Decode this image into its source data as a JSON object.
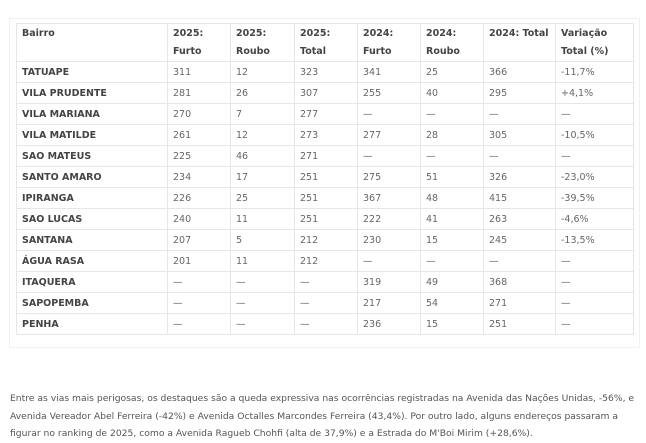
{
  "table": {
    "headers": [
      "Bairro",
      "2025: Furto",
      "2025: Roubo",
      "2025: Total",
      "2024: Furto",
      "2024: Roubo",
      "2024: Total",
      "Variação Total (%)"
    ],
    "rows": [
      [
        "TATUAPE",
        "311",
        "12",
        "323",
        "341",
        "25",
        "366",
        "-11,7%"
      ],
      [
        "VILA PRUDENTE",
        "281",
        "26",
        "307",
        "255",
        "40",
        "295",
        "+4,1%"
      ],
      [
        "VILA MARIANA",
        "270",
        "7",
        "277",
        "—",
        "—",
        "—",
        "—"
      ],
      [
        "VILA MATILDE",
        "261",
        "12",
        "273",
        "277",
        "28",
        "305",
        "-10,5%"
      ],
      [
        "SAO MATEUS",
        "225",
        "46",
        "271",
        "—",
        "—",
        "—",
        "—"
      ],
      [
        "SANTO AMARO",
        "234",
        "17",
        "251",
        "275",
        "51",
        "326",
        "-23,0%"
      ],
      [
        "IPIRANGA",
        "226",
        "25",
        "251",
        "367",
        "48",
        "415",
        "-39,5%"
      ],
      [
        "SAO LUCAS",
        "240",
        "11",
        "251",
        "222",
        "41",
        "263",
        "-4,6%"
      ],
      [
        "SANTANA",
        "207",
        "5",
        "212",
        "230",
        "15",
        "245",
        "-13,5%"
      ],
      [
        "ÁGUA RASA",
        "201",
        "11",
        "212",
        "—",
        "—",
        "—",
        "—"
      ],
      [
        "ITAQUERA",
        "—",
        "—",
        "—",
        "319",
        "49",
        "368",
        "—"
      ],
      [
        "SAPOPEMBA",
        "—",
        "—",
        "—",
        "217",
        "54",
        "271",
        "—"
      ],
      [
        "PENHA",
        "—",
        "—",
        "—",
        "236",
        "15",
        "251",
        "—"
      ]
    ]
  },
  "paragraph": "Entre as vias mais perigosas, os destaques são a queda expressiva nas ocorrências registradas na Avenida das Nações Unidas, -56%, e Avenida Vereador Abel Ferreira (-42%) e Avenida Octalles Marcondes Ferreira (43,4%). Por outro lado, alguns endereços passaram a figurar no ranking de 2025, como a Avenida Ragueb Chohfi (alta de 37,9%) e a Estrada do M'Boi Mirim (+28,6%)."
}
